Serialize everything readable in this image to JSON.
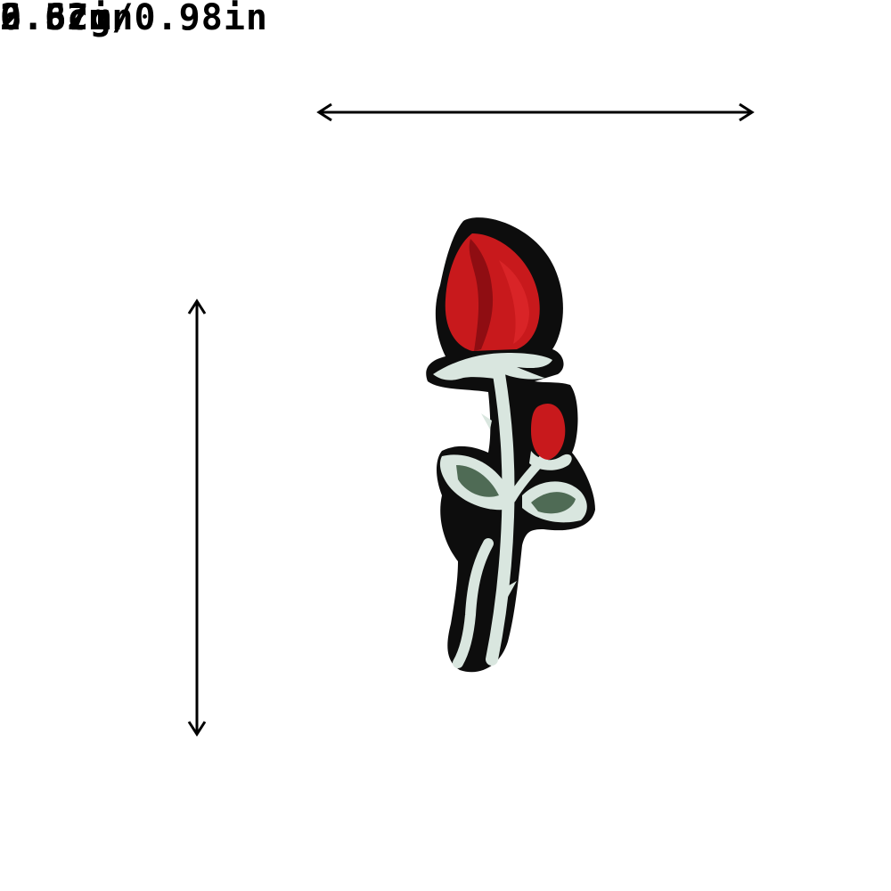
{
  "dimensions": {
    "width_label": "2.5cm/0.98in",
    "height_cm": "6.8cm",
    "height_in": "2.67in"
  },
  "weight": "0.62g",
  "colors": {
    "background": "#ffffff",
    "text": "#000000",
    "patch_border": "#0d0d0d",
    "petal_red": "#c8191c",
    "petal_dark": "#8f0d12",
    "stem": "#d9e6df",
    "leaf": "#4f6b55"
  }
}
